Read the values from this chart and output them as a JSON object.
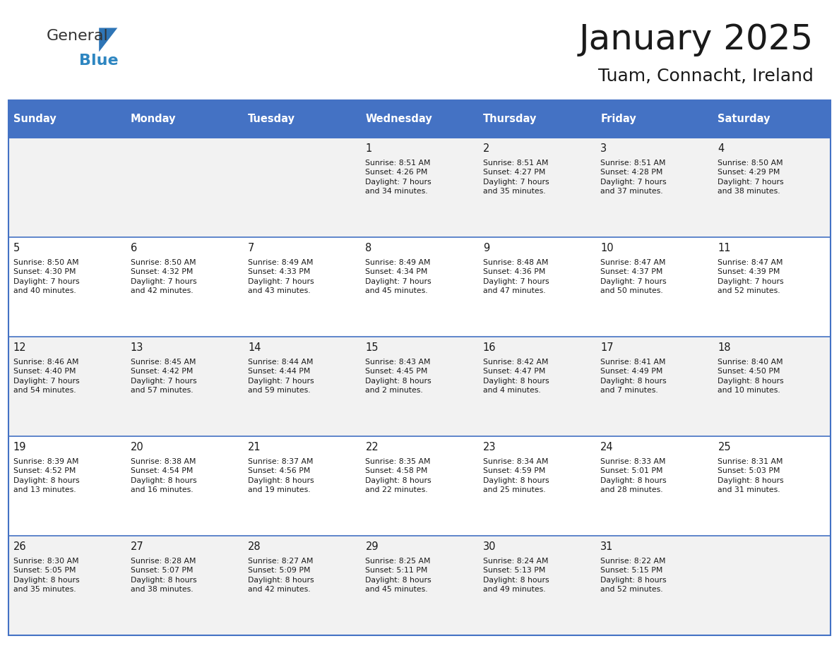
{
  "title": "January 2025",
  "subtitle": "Tuam, Connacht, Ireland",
  "header_color": "#4472C4",
  "header_text_color": "#FFFFFF",
  "cell_bg_even": "#F2F2F2",
  "cell_bg_odd": "#FFFFFF",
  "border_color": "#4472C4",
  "line_color": "#4472C4",
  "days_of_week": [
    "Sunday",
    "Monday",
    "Tuesday",
    "Wednesday",
    "Thursday",
    "Friday",
    "Saturday"
  ],
  "calendar": [
    [
      {
        "day": "",
        "info": ""
      },
      {
        "day": "",
        "info": ""
      },
      {
        "day": "",
        "info": ""
      },
      {
        "day": "1",
        "info": "Sunrise: 8:51 AM\nSunset: 4:26 PM\nDaylight: 7 hours\nand 34 minutes."
      },
      {
        "day": "2",
        "info": "Sunrise: 8:51 AM\nSunset: 4:27 PM\nDaylight: 7 hours\nand 35 minutes."
      },
      {
        "day": "3",
        "info": "Sunrise: 8:51 AM\nSunset: 4:28 PM\nDaylight: 7 hours\nand 37 minutes."
      },
      {
        "day": "4",
        "info": "Sunrise: 8:50 AM\nSunset: 4:29 PM\nDaylight: 7 hours\nand 38 minutes."
      }
    ],
    [
      {
        "day": "5",
        "info": "Sunrise: 8:50 AM\nSunset: 4:30 PM\nDaylight: 7 hours\nand 40 minutes."
      },
      {
        "day": "6",
        "info": "Sunrise: 8:50 AM\nSunset: 4:32 PM\nDaylight: 7 hours\nand 42 minutes."
      },
      {
        "day": "7",
        "info": "Sunrise: 8:49 AM\nSunset: 4:33 PM\nDaylight: 7 hours\nand 43 minutes."
      },
      {
        "day": "8",
        "info": "Sunrise: 8:49 AM\nSunset: 4:34 PM\nDaylight: 7 hours\nand 45 minutes."
      },
      {
        "day": "9",
        "info": "Sunrise: 8:48 AM\nSunset: 4:36 PM\nDaylight: 7 hours\nand 47 minutes."
      },
      {
        "day": "10",
        "info": "Sunrise: 8:47 AM\nSunset: 4:37 PM\nDaylight: 7 hours\nand 50 minutes."
      },
      {
        "day": "11",
        "info": "Sunrise: 8:47 AM\nSunset: 4:39 PM\nDaylight: 7 hours\nand 52 minutes."
      }
    ],
    [
      {
        "day": "12",
        "info": "Sunrise: 8:46 AM\nSunset: 4:40 PM\nDaylight: 7 hours\nand 54 minutes."
      },
      {
        "day": "13",
        "info": "Sunrise: 8:45 AM\nSunset: 4:42 PM\nDaylight: 7 hours\nand 57 minutes."
      },
      {
        "day": "14",
        "info": "Sunrise: 8:44 AM\nSunset: 4:44 PM\nDaylight: 7 hours\nand 59 minutes."
      },
      {
        "day": "15",
        "info": "Sunrise: 8:43 AM\nSunset: 4:45 PM\nDaylight: 8 hours\nand 2 minutes."
      },
      {
        "day": "16",
        "info": "Sunrise: 8:42 AM\nSunset: 4:47 PM\nDaylight: 8 hours\nand 4 minutes."
      },
      {
        "day": "17",
        "info": "Sunrise: 8:41 AM\nSunset: 4:49 PM\nDaylight: 8 hours\nand 7 minutes."
      },
      {
        "day": "18",
        "info": "Sunrise: 8:40 AM\nSunset: 4:50 PM\nDaylight: 8 hours\nand 10 minutes."
      }
    ],
    [
      {
        "day": "19",
        "info": "Sunrise: 8:39 AM\nSunset: 4:52 PM\nDaylight: 8 hours\nand 13 minutes."
      },
      {
        "day": "20",
        "info": "Sunrise: 8:38 AM\nSunset: 4:54 PM\nDaylight: 8 hours\nand 16 minutes."
      },
      {
        "day": "21",
        "info": "Sunrise: 8:37 AM\nSunset: 4:56 PM\nDaylight: 8 hours\nand 19 minutes."
      },
      {
        "day": "22",
        "info": "Sunrise: 8:35 AM\nSunset: 4:58 PM\nDaylight: 8 hours\nand 22 minutes."
      },
      {
        "day": "23",
        "info": "Sunrise: 8:34 AM\nSunset: 4:59 PM\nDaylight: 8 hours\nand 25 minutes."
      },
      {
        "day": "24",
        "info": "Sunrise: 8:33 AM\nSunset: 5:01 PM\nDaylight: 8 hours\nand 28 minutes."
      },
      {
        "day": "25",
        "info": "Sunrise: 8:31 AM\nSunset: 5:03 PM\nDaylight: 8 hours\nand 31 minutes."
      }
    ],
    [
      {
        "day": "26",
        "info": "Sunrise: 8:30 AM\nSunset: 5:05 PM\nDaylight: 8 hours\nand 35 minutes."
      },
      {
        "day": "27",
        "info": "Sunrise: 8:28 AM\nSunset: 5:07 PM\nDaylight: 8 hours\nand 38 minutes."
      },
      {
        "day": "28",
        "info": "Sunrise: 8:27 AM\nSunset: 5:09 PM\nDaylight: 8 hours\nand 42 minutes."
      },
      {
        "day": "29",
        "info": "Sunrise: 8:25 AM\nSunset: 5:11 PM\nDaylight: 8 hours\nand 45 minutes."
      },
      {
        "day": "30",
        "info": "Sunrise: 8:24 AM\nSunset: 5:13 PM\nDaylight: 8 hours\nand 49 minutes."
      },
      {
        "day": "31",
        "info": "Sunrise: 8:22 AM\nSunset: 5:15 PM\nDaylight: 8 hours\nand 52 minutes."
      },
      {
        "day": "",
        "info": ""
      }
    ]
  ],
  "logo_text1": "General",
  "logo_text2": "Blue",
  "logo_color1": "#333333",
  "logo_color2": "#2E86C1",
  "logo_triangle_color": "#2E75B6"
}
